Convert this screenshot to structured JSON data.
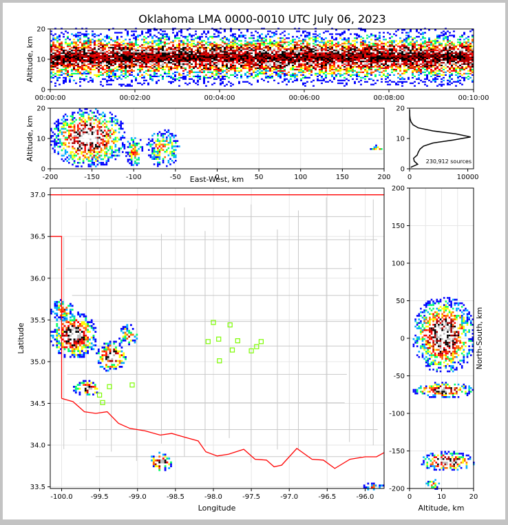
{
  "title": "Oklahoma LMA 0000-0010 UTC July 06, 2023",
  "colors": {
    "frame": "#c3c3c3",
    "background": "#ffffff",
    "grid": "#e6e6e6",
    "county_border": "#c8c8c8",
    "state_border": "#ff0000",
    "station": "#7cfc00",
    "profile_line": "#000000",
    "density_scale": [
      "#0000ff",
      "#00aaff",
      "#00ff66",
      "#ffff00",
      "#ff6600",
      "#ff0000",
      "#aa0000",
      "#000000",
      "#bbbbbb",
      "#ffffff"
    ]
  },
  "chart_data": [
    {
      "id": "time_height",
      "type": "heatmap",
      "xlabel": "",
      "ylabel": "Altitude, km",
      "xlim": [
        "00:00:00",
        "00:10:00"
      ],
      "ylim": [
        0,
        20
      ],
      "xticks": [
        "00:00:00",
        "00:02:00",
        "00:04:00",
        "00:06:00",
        "00:08:00",
        "00:10:00"
      ],
      "yticks": [
        0,
        10,
        20
      ],
      "altitude_band_km": {
        "peak": 10.5,
        "core_min": 9,
        "core_max": 12,
        "extent_min": 1,
        "extent_max": 20
      }
    },
    {
      "id": "ew_altitude",
      "type": "heatmap",
      "xlabel": "East-West, km",
      "ylabel": "Altitude, km",
      "xlim": [
        -200,
        200
      ],
      "ylim": [
        0,
        20
      ],
      "xticks": [
        -200,
        -150,
        -100,
        -50,
        0,
        50,
        100,
        150,
        200
      ],
      "yticks": [
        0,
        10,
        20
      ],
      "clusters": [
        {
          "x_min": -200,
          "x_max": -110,
          "alt_min": 1,
          "alt_max": 20,
          "intensity": "high"
        },
        {
          "x_min": -110,
          "x_max": -90,
          "alt_min": 1,
          "alt_max": 11,
          "intensity": "low"
        },
        {
          "x_min": -85,
          "x_max": -45,
          "alt_min": 1,
          "alt_max": 13,
          "intensity": "low"
        },
        {
          "x_min": 183,
          "x_max": 200,
          "alt_min": 6,
          "alt_max": 8,
          "intensity": "low"
        }
      ]
    },
    {
      "id": "altitude_histogram",
      "type": "line",
      "xlim": [
        0,
        11000
      ],
      "ylim": [
        0,
        20
      ],
      "xticks": [
        0,
        10000
      ],
      "yticks": [
        0,
        10,
        20
      ],
      "annotation": "230,912 sources",
      "profile": [
        {
          "alt": 0.5,
          "count": 200
        },
        {
          "alt": 1.5,
          "count": 1400
        },
        {
          "alt": 2.5,
          "count": 800
        },
        {
          "alt": 3.5,
          "count": 700
        },
        {
          "alt": 4.5,
          "count": 1300
        },
        {
          "alt": 5.5,
          "count": 1500
        },
        {
          "alt": 6.5,
          "count": 1800
        },
        {
          "alt": 7.5,
          "count": 2400
        },
        {
          "alt": 8.5,
          "count": 4000
        },
        {
          "alt": 9.5,
          "count": 7500
        },
        {
          "alt": 10.5,
          "count": 10500
        },
        {
          "alt": 11.5,
          "count": 8000
        },
        {
          "alt": 12.5,
          "count": 4000
        },
        {
          "alt": 13.5,
          "count": 1500
        },
        {
          "alt": 14.5,
          "count": 600
        },
        {
          "alt": 15.5,
          "count": 250
        },
        {
          "alt": 16.5,
          "count": 100
        },
        {
          "alt": 17.5,
          "count": 40
        },
        {
          "alt": 18.5,
          "count": 20
        },
        {
          "alt": 19.5,
          "count": 10
        }
      ]
    },
    {
      "id": "plan_view",
      "type": "heatmap",
      "xlabel": "Longitude",
      "ylabel": "Latitude",
      "xlim": [
        -100.15,
        -95.75
      ],
      "ylim": [
        33.48,
        37.08
      ],
      "xticks": [
        -100.0,
        -99.5,
        -99.0,
        -98.5,
        -98.0,
        -97.5,
        -97.0,
        -96.5,
        -96.0
      ],
      "yticks": [
        33.5,
        34.0,
        34.5,
        35.0,
        35.5,
        36.0,
        36.5,
        37.0
      ],
      "clusters": [
        {
          "lon_min": -100.15,
          "lon_max": -99.55,
          "lat_min": 35.05,
          "lat_max": 35.6,
          "intensity": "high"
        },
        {
          "lon_min": -99.55,
          "lon_max": -99.15,
          "lat_min": 34.9,
          "lat_max": 35.25,
          "intensity": "high"
        },
        {
          "lon_min": -99.85,
          "lon_max": -99.5,
          "lat_min": 34.6,
          "lat_max": 34.78,
          "intensity": "high"
        },
        {
          "lon_min": -100.15,
          "lon_max": -99.85,
          "lat_min": 35.5,
          "lat_max": 35.75,
          "intensity": "low"
        },
        {
          "lon_min": -99.25,
          "lon_max": -99.0,
          "lat_min": 35.2,
          "lat_max": 35.45,
          "intensity": "low"
        },
        {
          "lon_min": -98.85,
          "lon_max": -98.55,
          "lat_min": 33.7,
          "lat_max": 33.92,
          "intensity": "high"
        },
        {
          "lon_min": -96.1,
          "lon_max": -95.75,
          "lat_min": 33.48,
          "lat_max": 33.55,
          "intensity": "low"
        }
      ],
      "stations": [
        {
          "lon": -98.0,
          "lat": 35.47
        },
        {
          "lon": -97.78,
          "lat": 35.44
        },
        {
          "lon": -97.93,
          "lat": 35.27
        },
        {
          "lon": -98.07,
          "lat": 35.24
        },
        {
          "lon": -97.68,
          "lat": 35.25
        },
        {
          "lon": -97.37,
          "lat": 35.24
        },
        {
          "lon": -97.43,
          "lat": 35.18
        },
        {
          "lon": -97.75,
          "lat": 35.14
        },
        {
          "lon": -97.5,
          "lat": 35.13
        },
        {
          "lon": -97.92,
          "lat": 35.01
        },
        {
          "lon": -99.07,
          "lat": 34.72
        },
        {
          "lon": -99.37,
          "lat": 34.7
        },
        {
          "lon": -99.5,
          "lat": 34.6
        },
        {
          "lon": -99.46,
          "lat": 34.51
        }
      ],
      "state_border_path": [
        {
          "lon": -100.15,
          "lat": 37.0
        },
        {
          "lon": -95.75,
          "lat": 37.0
        }
      ],
      "panhandle_border": [
        {
          "lon": -100.15,
          "lat": 36.5
        },
        {
          "lon": -100.0,
          "lat": 36.5
        },
        {
          "lon": -100.0,
          "lat": 34.56
        }
      ],
      "red_river": [
        {
          "lon": -100.0,
          "lat": 34.56
        },
        {
          "lon": -99.85,
          "lat": 34.52
        },
        {
          "lon": -99.7,
          "lat": 34.4
        },
        {
          "lon": -99.55,
          "lat": 34.38
        },
        {
          "lon": -99.4,
          "lat": 34.4
        },
        {
          "lon": -99.25,
          "lat": 34.26
        },
        {
          "lon": -99.1,
          "lat": 34.2
        },
        {
          "lon": -98.9,
          "lat": 34.17
        },
        {
          "lon": -98.7,
          "lat": 34.12
        },
        {
          "lon": -98.55,
          "lat": 34.14
        },
        {
          "lon": -98.4,
          "lat": 34.1
        },
        {
          "lon": -98.2,
          "lat": 34.05
        },
        {
          "lon": -98.1,
          "lat": 33.92
        },
        {
          "lon": -97.95,
          "lat": 33.87
        },
        {
          "lon": -97.8,
          "lat": 33.89
        },
        {
          "lon": -97.6,
          "lat": 33.95
        },
        {
          "lon": -97.45,
          "lat": 33.83
        },
        {
          "lon": -97.3,
          "lat": 33.82
        },
        {
          "lon": -97.2,
          "lat": 33.74
        },
        {
          "lon": -97.1,
          "lat": 33.76
        },
        {
          "lon": -96.9,
          "lat": 33.96
        },
        {
          "lon": -96.7,
          "lat": 33.83
        },
        {
          "lon": -96.55,
          "lat": 33.82
        },
        {
          "lon": -96.4,
          "lat": 33.72
        },
        {
          "lon": -96.2,
          "lat": 33.83
        },
        {
          "lon": -96.0,
          "lat": 33.86
        },
        {
          "lon": -95.85,
          "lat": 33.86
        },
        {
          "lon": -95.75,
          "lat": 33.91
        }
      ]
    },
    {
      "id": "ns_altitude",
      "type": "heatmap",
      "xlabel": "Altitude, km",
      "ylabel": "North-South, km",
      "xlim": [
        0,
        20
      ],
      "ylim": [
        -200,
        200
      ],
      "xticks": [
        0,
        10,
        20
      ],
      "yticks": [
        -200,
        -150,
        -100,
        -50,
        0,
        50,
        100,
        150,
        200
      ],
      "clusters": [
        {
          "ns_min": -45,
          "ns_max": 55,
          "alt_min": 1,
          "alt_max": 20,
          "intensity": "high"
        },
        {
          "ns_min": -78,
          "ns_max": -58,
          "alt_min": 1,
          "alt_max": 20,
          "intensity": "high"
        },
        {
          "ns_min": -175,
          "ns_max": -150,
          "alt_min": 3,
          "alt_max": 20,
          "intensity": "high"
        },
        {
          "ns_min": -200,
          "ns_max": -185,
          "alt_min": 5,
          "alt_max": 10,
          "intensity": "low"
        }
      ]
    }
  ]
}
